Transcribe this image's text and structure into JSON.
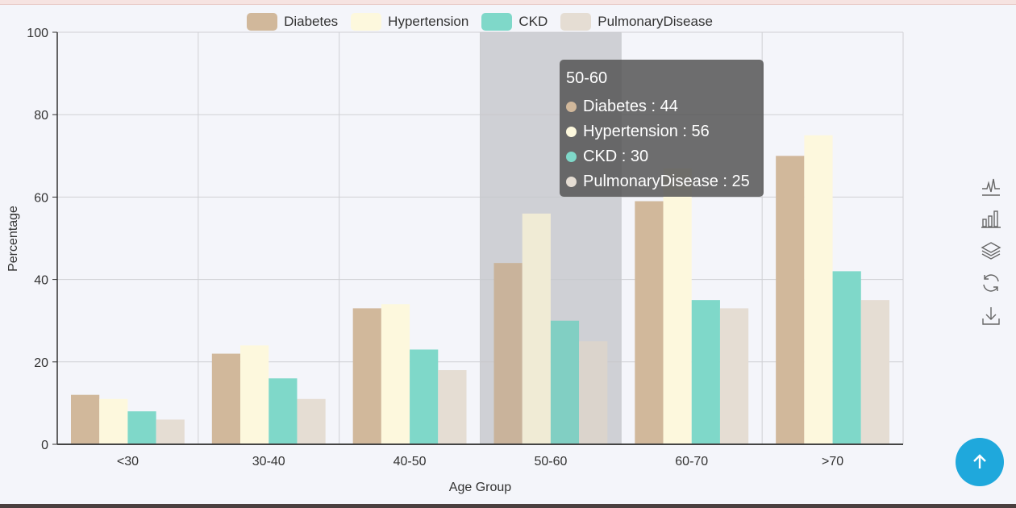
{
  "chart_data": {
    "type": "bar",
    "categories": [
      "<30",
      "30-40",
      "40-50",
      "50-60",
      "60-70",
      ">70"
    ],
    "series": [
      {
        "name": "Diabetes",
        "values": [
          12,
          22,
          33,
          44,
          59,
          70
        ],
        "color": "#d1b89b"
      },
      {
        "name": "Hypertension",
        "values": [
          11,
          24,
          34,
          56,
          67,
          75
        ],
        "color": "#fdf8dd"
      },
      {
        "name": "CKD",
        "values": [
          8,
          16,
          23,
          30,
          35,
          42
        ],
        "color": "#7fd8c9"
      },
      {
        "name": "PulmonaryDisease",
        "values": [
          6,
          11,
          18,
          25,
          33,
          35
        ],
        "color": "#e5ddd3"
      }
    ],
    "xlabel": "Age Group",
    "ylabel": "Percentage",
    "ylim": [
      0,
      100
    ],
    "yticks": [
      0,
      20,
      40,
      60,
      80,
      100
    ],
    "grid": true,
    "legend_position": "top-center",
    "highlighted_category": "50-60"
  },
  "tooltip": {
    "title": "50-60",
    "rows": [
      {
        "label": "Diabetes : 44",
        "color": "#d1b89b"
      },
      {
        "label": "Hypertension : 56",
        "color": "#fdf8dd"
      },
      {
        "label": "CKD : 30",
        "color": "#7fd8c9"
      },
      {
        "label": "PulmonaryDisease : 25",
        "color": "#e5ddd3"
      }
    ]
  },
  "toolbox": [
    "line-chart-icon",
    "bar-chart-icon",
    "stack-icon",
    "restore-icon",
    "download-icon"
  ],
  "fab": {
    "icon": "arrow-up-icon",
    "color": "#1fa8dc"
  }
}
